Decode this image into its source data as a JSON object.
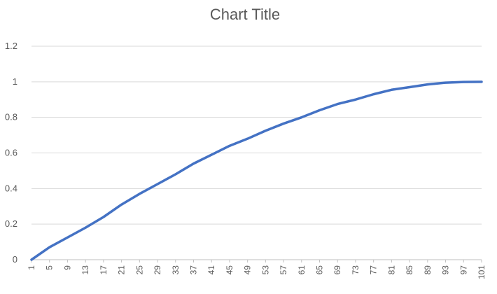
{
  "chart_data": {
    "type": "line",
    "title": "Chart Title",
    "xlabel": "",
    "ylabel": "",
    "ylim": [
      0,
      1.2
    ],
    "y_ticks": [
      "0",
      "0.2",
      "0.4",
      "0.6",
      "0.8",
      "1",
      "1.2"
    ],
    "x_ticks": [
      "1",
      "5",
      "9",
      "13",
      "17",
      "21",
      "25",
      "29",
      "33",
      "37",
      "41",
      "45",
      "49",
      "53",
      "57",
      "61",
      "65",
      "69",
      "73",
      "77",
      "81",
      "85",
      "89",
      "93",
      "97",
      "101"
    ],
    "grid": true,
    "legend": "none",
    "series": [
      {
        "color": "#4472c4",
        "x": [
          1,
          5,
          9,
          13,
          17,
          21,
          25,
          29,
          33,
          37,
          41,
          45,
          49,
          53,
          57,
          61,
          65,
          69,
          73,
          77,
          81,
          85,
          89,
          93,
          97,
          101
        ],
        "values": [
          0.0,
          0.07,
          0.125,
          0.18,
          0.24,
          0.31,
          0.37,
          0.425,
          0.48,
          0.54,
          0.59,
          0.64,
          0.68,
          0.725,
          0.765,
          0.8,
          0.84,
          0.875,
          0.9,
          0.93,
          0.955,
          0.97,
          0.985,
          0.995,
          0.999,
          1.0
        ]
      }
    ]
  }
}
